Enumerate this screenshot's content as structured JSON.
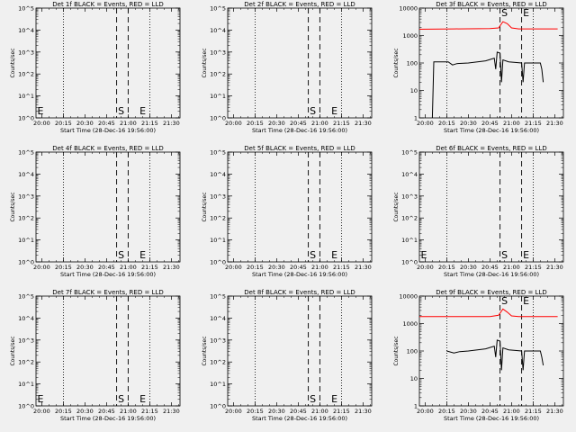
{
  "figure": {
    "background": "#f0f0f0",
    "event_color": "#000000",
    "lld_color": "#ff0000"
  },
  "chart_data": [
    {
      "type": "line",
      "title": "Det 1f BLACK = Events, RED = LLD",
      "ylabel": "Counts/sec",
      "xlabel": "Start Time (28-Dec-16 19:56:00)",
      "scale": "log_exp",
      "x_ticks": [
        "20:00",
        "20:15",
        "20:30",
        "20:45",
        "21:00",
        "21:15",
        "21:30"
      ],
      "y_ticks": [
        "10^0",
        "10^1",
        "10^2",
        "10^3",
        "10^4",
        "10^5"
      ],
      "x_range": [
        "19:56",
        "21:36"
      ],
      "y_range": [
        1,
        100000
      ],
      "dotted_lines": [
        "20:15",
        "21:15"
      ],
      "dashed_lines": [
        "20:52",
        "21:00"
      ],
      "markers": [
        {
          "t": "19:56",
          "label": "E"
        },
        {
          "t": "20:52",
          "label": "S"
        },
        {
          "t": "21:07",
          "label": "E"
        }
      ],
      "series": []
    },
    {
      "type": "line",
      "title": "Det 2f BLACK = Events, RED = LLD",
      "ylabel": "Counts/sec",
      "xlabel": "Start Time (28-Dec-16 19:56:00)",
      "scale": "log_exp",
      "x_ticks": [
        "20:00",
        "20:15",
        "20:30",
        "20:45",
        "21:00",
        "21:15",
        "21:30"
      ],
      "y_ticks": [
        "10^0",
        "10^1",
        "10^2",
        "10^3",
        "10^4",
        "10^5"
      ],
      "x_range": [
        "19:56",
        "21:36"
      ],
      "y_range": [
        1,
        100000
      ],
      "dotted_lines": [
        "20:15",
        "21:15"
      ],
      "dashed_lines": [
        "20:52",
        "21:00"
      ],
      "markers": [
        {
          "t": "20:52",
          "label": "S"
        },
        {
          "t": "21:07",
          "label": "E"
        }
      ],
      "series": []
    },
    {
      "type": "line",
      "title": "Det 3f BLACK = Events, RED = LLD",
      "ylabel": "Counts/sec",
      "xlabel": "Start Time (28-Dec-16 19:56:00)",
      "scale": "log_plain",
      "x_ticks": [
        "20:00",
        "20:15",
        "20:30",
        "20:45",
        "21:00",
        "21:15",
        "21:30"
      ],
      "y_ticks": [
        "1",
        "10",
        "100",
        "1000",
        "10000"
      ],
      "x_range": [
        "19:56",
        "21:36"
      ],
      "y_range": [
        1,
        10000
      ],
      "dotted_lines": [
        "20:15",
        "21:15"
      ],
      "dashed_lines": [
        "20:52",
        "21:07"
      ],
      "markers": [
        {
          "t": "20:52",
          "label": "S"
        },
        {
          "t": "21:07",
          "label": "E"
        }
      ],
      "series": [
        {
          "color": "#ff0000",
          "points": [
            [
              "19:56",
              1700
            ],
            [
              "20:20",
              1750
            ],
            [
              "20:45",
              1800
            ],
            [
              "20:51",
              1900
            ],
            [
              "20:54",
              3200
            ],
            [
              "20:57",
              2700
            ],
            [
              "21:00",
              1900
            ],
            [
              "21:05",
              1750
            ],
            [
              "21:20",
              1750
            ],
            [
              "21:32",
              1750
            ]
          ]
        },
        {
          "color": "#000000",
          "points": [
            [
              "20:05",
              1
            ],
            [
              "20:06",
              110
            ],
            [
              "20:16",
              110
            ],
            [
              "20:19",
              85
            ],
            [
              "20:22",
              95
            ],
            [
              "20:30",
              100
            ],
            [
              "20:42",
              120
            ],
            [
              "20:48",
              150
            ],
            [
              "20:49",
              60
            ],
            [
              "20:50",
              250
            ],
            [
              "20:52",
              230
            ],
            [
              "20:53",
              20
            ],
            [
              "20:54",
              130
            ],
            [
              "20:58",
              110
            ],
            [
              "21:07",
              100
            ],
            [
              "21:08",
              20
            ],
            [
              "21:09",
              100
            ],
            [
              "21:20",
              100
            ],
            [
              "21:21",
              60
            ],
            [
              "21:22",
              20
            ]
          ]
        }
      ]
    },
    {
      "type": "line",
      "title": "Det 4f BLACK = Events, RED = LLD",
      "ylabel": "Counts/sec",
      "xlabel": "Start Time (28-Dec-16 19:56:00)",
      "scale": "log_exp",
      "x_ticks": [
        "20:00",
        "20:15",
        "20:30",
        "20:45",
        "21:00",
        "21:15",
        "21:30"
      ],
      "y_ticks": [
        "10^0",
        "10^1",
        "10^2",
        "10^3",
        "10^4",
        "10^5"
      ],
      "x_range": [
        "19:56",
        "21:36"
      ],
      "y_range": [
        1,
        100000
      ],
      "dotted_lines": [
        "20:15",
        "21:15"
      ],
      "dashed_lines": [
        "20:52",
        "21:00"
      ],
      "markers": [
        {
          "t": "20:52",
          "label": "S"
        },
        {
          "t": "21:07",
          "label": "E"
        }
      ],
      "series": []
    },
    {
      "type": "line",
      "title": "Det 5f BLACK = Events, RED = LLD",
      "ylabel": "Counts/sec",
      "xlabel": "Start Time (28-Dec-16 19:56:00)",
      "scale": "log_exp",
      "x_ticks": [
        "20:00",
        "20:15",
        "20:30",
        "20:45",
        "21:00",
        "21:15",
        "21:30"
      ],
      "y_ticks": [
        "10^0",
        "10^1",
        "10^2",
        "10^3",
        "10^4",
        "10^5"
      ],
      "x_range": [
        "19:56",
        "21:36"
      ],
      "y_range": [
        1,
        100000
      ],
      "dotted_lines": [
        "20:15",
        "21:15"
      ],
      "dashed_lines": [
        "20:52",
        "21:00"
      ],
      "markers": [
        {
          "t": "20:52",
          "label": "S"
        },
        {
          "t": "21:07",
          "label": "E"
        }
      ],
      "series": []
    },
    {
      "type": "line",
      "title": "Det 6f BLACK = Events, RED = LLD",
      "ylabel": "Counts/sec",
      "xlabel": "Start Time (28-Dec-16 19:56:00)",
      "scale": "log_exp",
      "x_ticks": [
        "20:00",
        "20:15",
        "20:30",
        "20:45",
        "21:00",
        "21:15",
        "21:30"
      ],
      "y_ticks": [
        "10^0",
        "10^1",
        "10^2",
        "10^3",
        "10^4",
        "10^5"
      ],
      "x_range": [
        "19:56",
        "21:36"
      ],
      "y_range": [
        1,
        100000
      ],
      "dotted_lines": [
        "20:15",
        "21:15"
      ],
      "dashed_lines": [
        "20:52",
        "21:07"
      ],
      "markers": [
        {
          "t": "19:56",
          "label": "E"
        },
        {
          "t": "20:52",
          "label": "S"
        },
        {
          "t": "21:07",
          "label": "E"
        }
      ],
      "series": []
    },
    {
      "type": "line",
      "title": "Det 7f BLACK = Events, RED = LLD",
      "ylabel": "Counts/sec",
      "xlabel": "Start Time (28-Dec-16 19:56:00)",
      "scale": "log_exp",
      "x_ticks": [
        "20:00",
        "20:15",
        "20:30",
        "20:45",
        "21:00",
        "21:15",
        "21:30"
      ],
      "y_ticks": [
        "10^0",
        "10^1",
        "10^2",
        "10^3",
        "10^4",
        "10^5"
      ],
      "x_range": [
        "19:56",
        "21:36"
      ],
      "y_range": [
        1,
        100000
      ],
      "dotted_lines": [
        "20:15",
        "21:15"
      ],
      "dashed_lines": [
        "20:52",
        "21:00"
      ],
      "markers": [
        {
          "t": "19:56",
          "label": "E"
        },
        {
          "t": "20:52",
          "label": "S"
        },
        {
          "t": "21:07",
          "label": "E"
        }
      ],
      "series": []
    },
    {
      "type": "line",
      "title": "Det 8f BLACK = Events, RED = LLD",
      "ylabel": "Counts/sec",
      "xlabel": "Start Time (28-Dec-16 19:56:00)",
      "scale": "log_exp",
      "x_ticks": [
        "20:00",
        "20:15",
        "20:30",
        "20:45",
        "21:00",
        "21:15",
        "21:30"
      ],
      "y_ticks": [
        "10^0",
        "10^1",
        "10^2",
        "10^3",
        "10^4",
        "10^5"
      ],
      "x_range": [
        "19:56",
        "21:36"
      ],
      "y_range": [
        1,
        100000
      ],
      "dotted_lines": [
        "20:15",
        "21:15"
      ],
      "dashed_lines": [
        "20:52",
        "21:00"
      ],
      "markers": [
        {
          "t": "20:52",
          "label": "S"
        },
        {
          "t": "21:07",
          "label": "E"
        }
      ],
      "series": []
    },
    {
      "type": "line",
      "title": "Det 9f BLACK = Events, RED = LLD",
      "ylabel": "Counts/sec",
      "xlabel": "Start Time (28-Dec-16 19:56:00)",
      "scale": "log_plain",
      "x_ticks": [
        "20:00",
        "20:15",
        "20:30",
        "20:45",
        "21:00",
        "21:15",
        "21:30"
      ],
      "y_ticks": [
        "1",
        "10",
        "100",
        "1000",
        "10000"
      ],
      "x_range": [
        "19:56",
        "21:36"
      ],
      "y_range": [
        1,
        10000
      ],
      "dotted_lines": [
        "20:15",
        "21:15"
      ],
      "dashed_lines": [
        "20:52",
        "21:07"
      ],
      "markers": [
        {
          "t": "20:52",
          "label": "S"
        },
        {
          "t": "21:07",
          "label": "E"
        }
      ],
      "series": [
        {
          "color": "#ff0000",
          "points": [
            [
              "19:56",
              1800
            ],
            [
              "20:20",
              1800
            ],
            [
              "20:45",
              1800
            ],
            [
              "20:51",
              2000
            ],
            [
              "20:54",
              3400
            ],
            [
              "20:57",
              2600
            ],
            [
              "21:00",
              1900
            ],
            [
              "21:05",
              1800
            ],
            [
              "21:20",
              1800
            ],
            [
              "21:32",
              1800
            ]
          ]
        },
        {
          "color": "#000000",
          "points": [
            [
              "20:15",
              100
            ],
            [
              "20:20",
              85
            ],
            [
              "20:24",
              95
            ],
            [
              "20:30",
              100
            ],
            [
              "20:42",
              120
            ],
            [
              "20:48",
              150
            ],
            [
              "20:49",
              60
            ],
            [
              "20:50",
              250
            ],
            [
              "20:52",
              230
            ],
            [
              "20:53",
              20
            ],
            [
              "20:54",
              130
            ],
            [
              "20:58",
              110
            ],
            [
              "21:07",
              100
            ],
            [
              "21:08",
              20
            ],
            [
              "21:09",
              100
            ],
            [
              "21:20",
              100
            ],
            [
              "21:21",
              60
            ],
            [
              "21:22",
              30
            ]
          ]
        }
      ]
    }
  ]
}
